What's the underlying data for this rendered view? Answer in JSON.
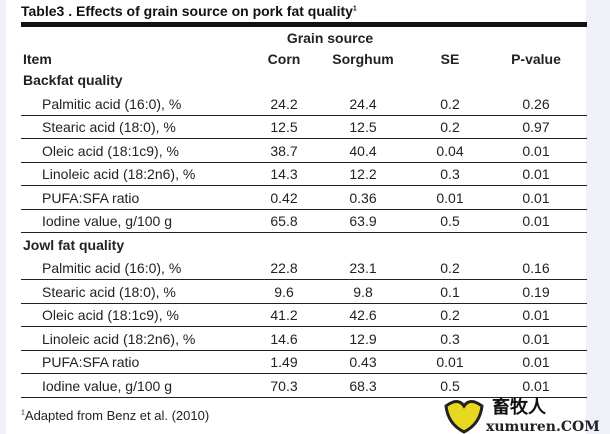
{
  "title": "Table3 . Effects of grain source on pork fat quality",
  "title_sup": "1",
  "group_header": "Grain source",
  "columns": [
    "Item",
    "Corn",
    "Sorghum",
    "SE",
    "P-value"
  ],
  "sections": [
    {
      "label": "Backfat quality",
      "rows": [
        [
          "Palmitic acid (16:0), %",
          "24.2",
          "24.4",
          "0.2",
          "0.26"
        ],
        [
          "Stearic acid (18:0), %",
          "12.5",
          "12.5",
          "0.2",
          "0.97"
        ],
        [
          "Oleic acid (18:1c9), %",
          "38.7",
          "40.4",
          "0.04",
          "0.01"
        ],
        [
          "Linoleic acid (18:2n6), %",
          "14.3",
          "12.2",
          "0.3",
          "0.01"
        ],
        [
          "PUFA:SFA ratio",
          "0.42",
          "0.36",
          "0.01",
          "0.01"
        ],
        [
          "Iodine value, g/100 g",
          "65.8",
          "63.9",
          "0.5",
          "0.01"
        ]
      ]
    },
    {
      "label": "Jowl fat quality",
      "rows": [
        [
          "Palmitic acid (16:0), %",
          "22.8",
          "23.1",
          "0.2",
          "0.16"
        ],
        [
          "Stearic acid (18:0), %",
          "9.6",
          "9.8",
          "0.1",
          "0.19"
        ],
        [
          "Oleic acid (18:1c9), %",
          "41.2",
          "42.6",
          "0.2",
          "0.01"
        ],
        [
          "Linoleic acid (18:2n6), %",
          "14.6",
          "12.9",
          "0.3",
          "0.01"
        ],
        [
          "PUFA:SFA ratio",
          "1.49",
          "0.43",
          "0.01",
          "0.01"
        ],
        [
          "Iodine value, g/100 g",
          "70.3",
          "68.3",
          "0.5",
          "0.01"
        ]
      ]
    }
  ],
  "footnote_sup": "1",
  "footnote": "Adapted from Benz et al. (2010)",
  "watermark": {
    "cn": "畜牧人",
    "url": "xumuren.COM"
  }
}
